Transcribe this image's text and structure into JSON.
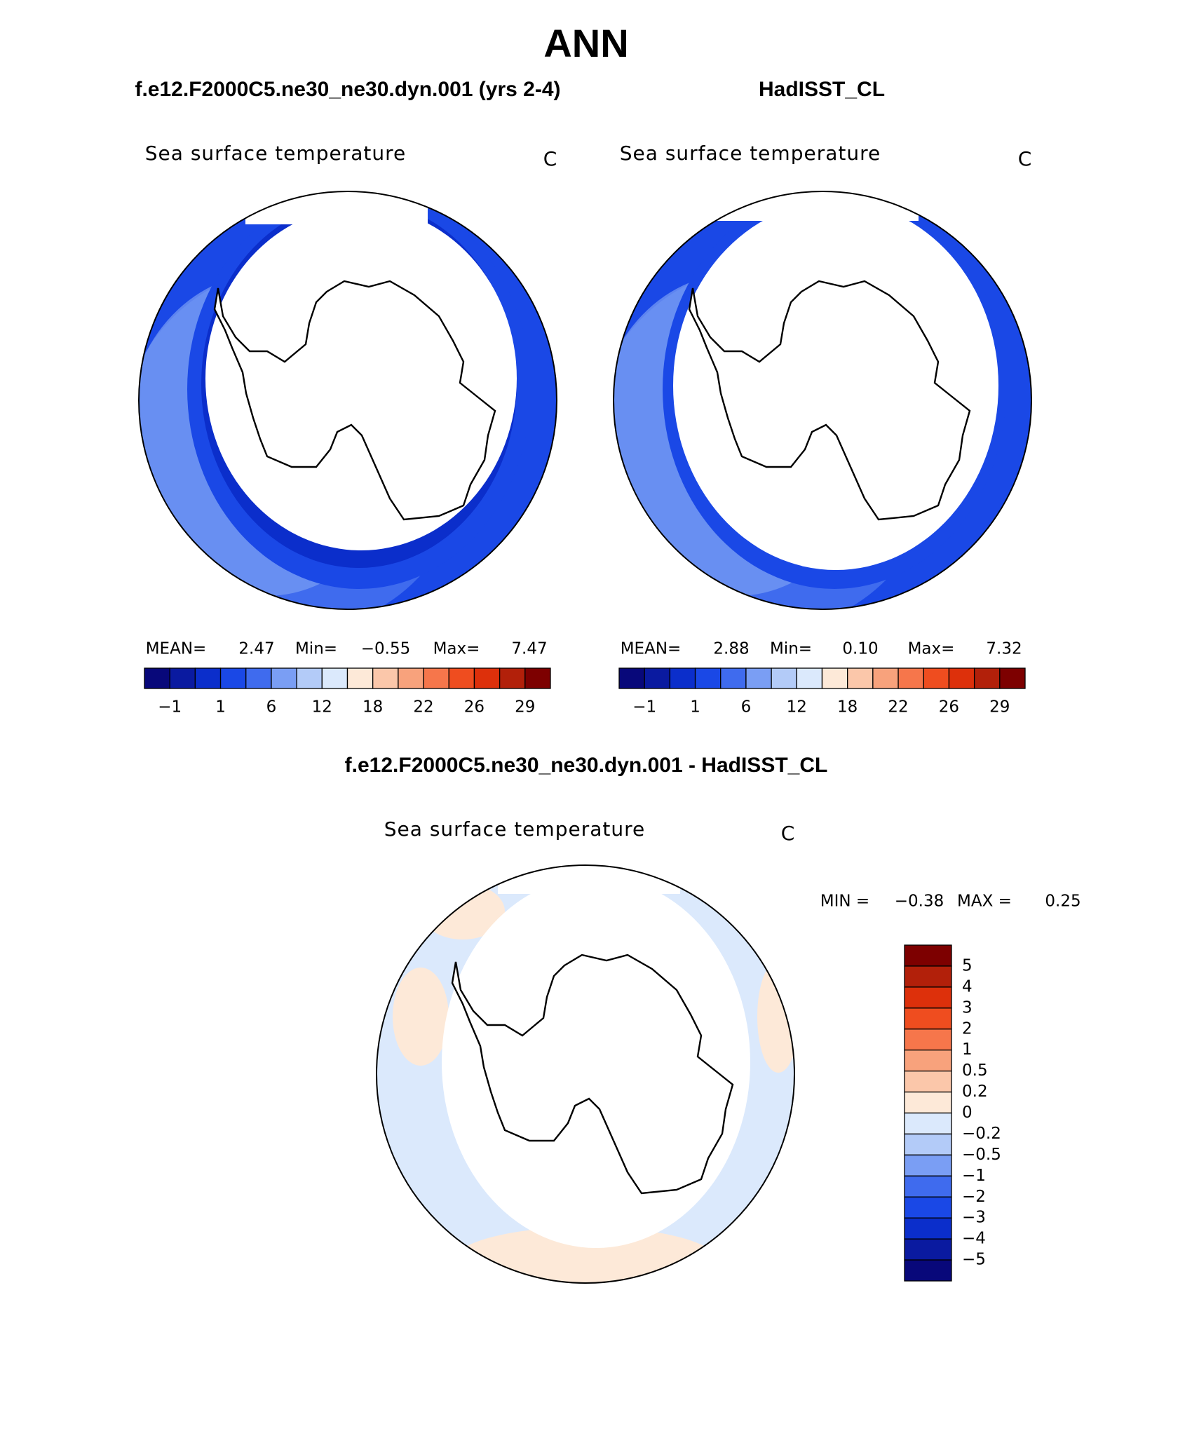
{
  "title": "ANN",
  "panels": [
    {
      "subtitle": "f.e12.F2000C5.ne30_ne30.dyn.001 (yrs 2-4)",
      "variable": "Sea surface temperature",
      "units": "C",
      "stats": [
        "MEAN=",
        "2.47",
        "Min=",
        "−0.55",
        "Max=",
        "7.47"
      ],
      "colorbar": {
        "colors": [
          "#08087a",
          "#0a1aa0",
          "#0b2ecb",
          "#1a48e6",
          "#3f6bee",
          "#7a9ef4",
          "#b3cbf8",
          "#dbe9fc",
          "#fde9d8",
          "#fbc7aa",
          "#f8a27c",
          "#f6764b",
          "#ef4d1f",
          "#dd300b",
          "#b2200a",
          "#7d0000"
        ],
        "labels": [
          "−1",
          "1",
          "6",
          "12",
          "18",
          "22",
          "26",
          "29"
        ]
      }
    },
    {
      "subtitle": "HadISST_CL",
      "variable": "Sea surface temperature",
      "units": "C",
      "stats": [
        "MEAN=",
        "2.88",
        "Min=",
        "0.10",
        "Max=",
        "7.32"
      ],
      "colorbar": {
        "colors": [
          "#08087a",
          "#0a1aa0",
          "#0b2ecb",
          "#1a48e6",
          "#3f6bee",
          "#7a9ef4",
          "#b3cbf8",
          "#dbe9fc",
          "#fde9d8",
          "#fbc7aa",
          "#f8a27c",
          "#f6764b",
          "#ef4d1f",
          "#dd300b",
          "#b2200a",
          "#7d0000"
        ],
        "labels": [
          "−1",
          "1",
          "6",
          "12",
          "18",
          "22",
          "26",
          "29"
        ]
      }
    }
  ],
  "difference": {
    "subtitle": "f.e12.F2000C5.ne30_ne30.dyn.001 - HadISST_CL",
    "variable": "Sea surface temperature",
    "units": "C",
    "stats": [
      "MIN =",
      "−0.38",
      "MAX =",
      "0.25"
    ],
    "colorbar": {
      "colors": [
        "#7d0000",
        "#b2200a",
        "#dd300b",
        "#ef4d1f",
        "#f6764b",
        "#f8a27c",
        "#fbc7aa",
        "#fde9d8",
        "#dbe9fc",
        "#b3cbf8",
        "#7a9ef4",
        "#3f6bee",
        "#1a48e6",
        "#0b2ecb",
        "#0a1aa0",
        "#08087a"
      ],
      "labels": [
        "5",
        "4",
        "3",
        "2",
        "1",
        "0.5",
        "0.2",
        "0",
        "−0.2",
        "−0.5",
        "−1",
        "−2",
        "−3",
        "−4",
        "−5"
      ]
    }
  }
}
